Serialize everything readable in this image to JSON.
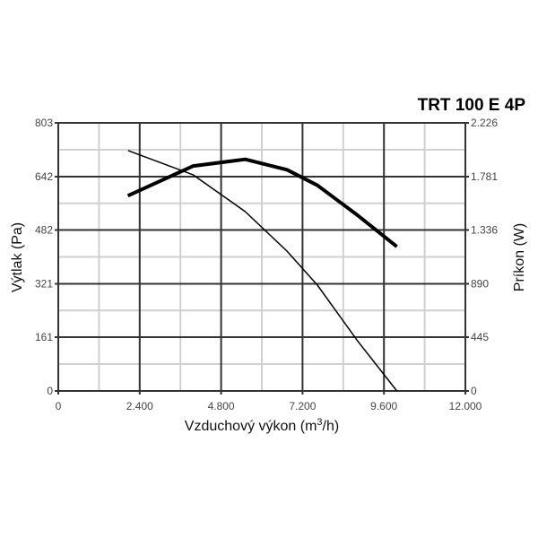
{
  "chart_data": {
    "type": "line",
    "title": "TRT 100 E 4P",
    "xlabel": "Vzduchový výkon (m³/h)",
    "xlabel_main": "Vzduchový výkon (m",
    "xlabel_sup": "3",
    "xlabel_tail": "/h)",
    "ylabel": "Výtlak (Pa)",
    "y2label": "Príkon (W)",
    "xlim": [
      0,
      12000
    ],
    "ylim": [
      0,
      803
    ],
    "y2lim": [
      0,
      2226
    ],
    "grid": true,
    "x_ticks": [
      0,
      2400,
      4800,
      7200,
      9600,
      12000
    ],
    "x_tick_labels": [
      "0",
      "2.400",
      "4.800",
      "7.200",
      "9.600",
      "12.000"
    ],
    "y_ticks": [
      0,
      161,
      321,
      482,
      642,
      803
    ],
    "y_tick_labels": [
      "0",
      "161",
      "321",
      "482",
      "642",
      "803"
    ],
    "y2_ticks": [
      0,
      445,
      890,
      1336,
      1781,
      2226
    ],
    "y2_tick_labels": [
      "0",
      "445",
      "890",
      "1.336",
      "1.781",
      "2.226"
    ],
    "series": [
      {
        "axis": "left",
        "style": "thin",
        "x": [
          2060,
          3980,
          5510,
          6740,
          7640,
          8820,
          9980
        ],
        "y": [
          720,
          647,
          537,
          419,
          317,
          150,
          0
        ]
      },
      {
        "axis": "right",
        "style": "thick",
        "x": [
          2050,
          3980,
          5510,
          6740,
          7640,
          8820,
          9980
        ],
        "y": [
          1621,
          1868,
          1923,
          1837,
          1707,
          1459,
          1198
        ]
      }
    ],
    "line_color": "#000000",
    "grid_major_color": "#333333",
    "grid_minor_color": "#d0d0d0"
  }
}
